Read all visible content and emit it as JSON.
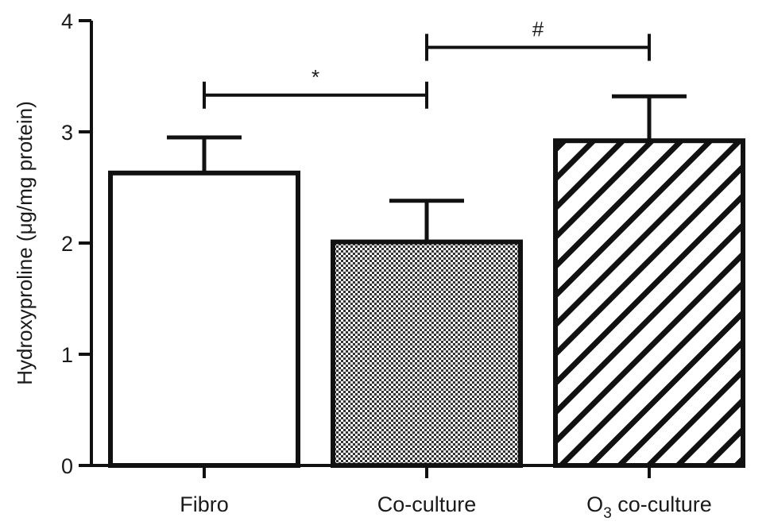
{
  "chart_data": {
    "type": "bar",
    "ylabel": "Hydroxyproline (μg/mg protein)",
    "ylim": [
      0,
      4
    ],
    "yticks": [
      0,
      1,
      2,
      3,
      4
    ],
    "categories": [
      {
        "label": "Fibro"
      },
      {
        "label": "Co-culture"
      },
      {
        "label": "O",
        "sub": "3",
        "rest": " co-culture"
      }
    ],
    "values": [
      2.63,
      2.01,
      2.92
    ],
    "errors": [
      0.32,
      0.37,
      0.4
    ],
    "fill_patterns": [
      "none",
      "checker",
      "diagonal-hatch"
    ],
    "significance": [
      {
        "from": 0,
        "to": 1,
        "y": 3.33,
        "symbol": "*"
      },
      {
        "from": 1,
        "to": 2,
        "y": 3.76,
        "symbol": "#"
      }
    ],
    "colors": {
      "ink": "#111111",
      "background": "#ffffff"
    }
  }
}
